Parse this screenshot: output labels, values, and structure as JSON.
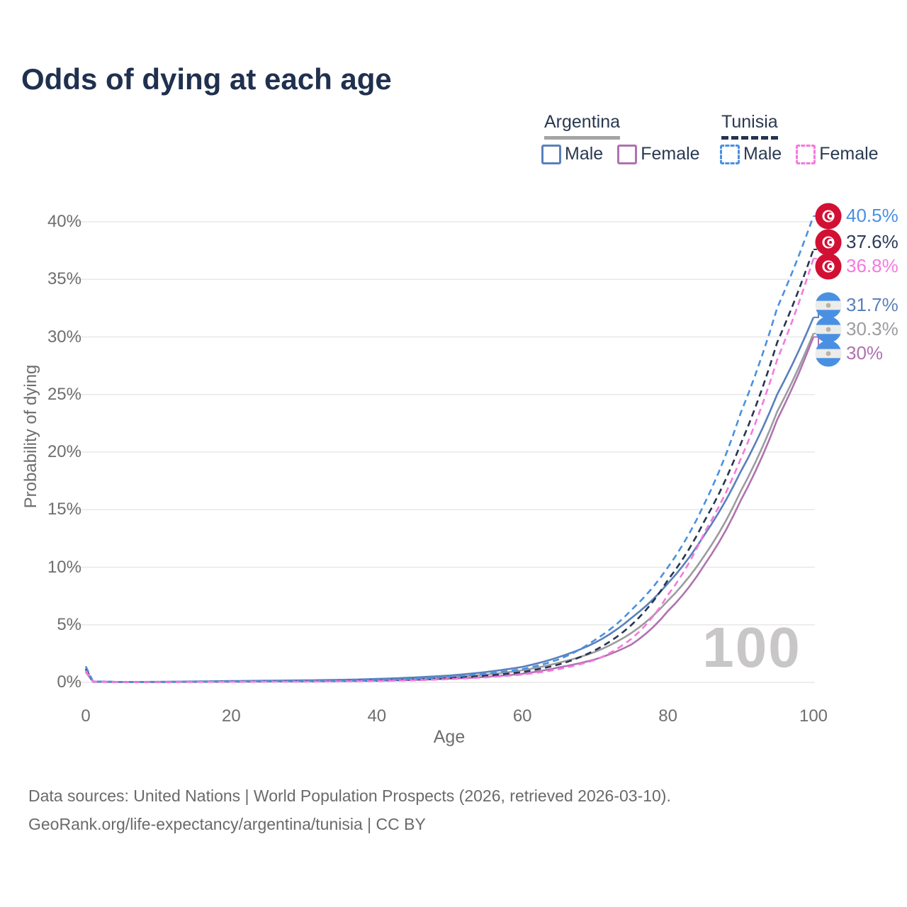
{
  "title": "Odds of dying at each age",
  "watermark": "100",
  "legend": {
    "groups": [
      {
        "label": "Argentina",
        "underline": "solid",
        "items": [
          {
            "label": "Male",
            "color": "#5a80bb",
            "dash": false
          },
          {
            "label": "Female",
            "color": "#af72b0",
            "dash": false
          }
        ]
      },
      {
        "label": "Tunisia",
        "underline": "dashed",
        "items": [
          {
            "label": "Male",
            "color": "#4a90e2",
            "dash": true
          },
          {
            "label": "Female",
            "color": "#f678de",
            "dash": true
          }
        ]
      }
    ]
  },
  "chart_data": {
    "type": "line",
    "title": "Odds of dying at each age",
    "xlabel": "Age",
    "ylabel": "Probability of dying",
    "x_ticks": [
      0,
      20,
      40,
      60,
      80,
      100
    ],
    "y_ticks": [
      0,
      5,
      10,
      15,
      20,
      25,
      30,
      35,
      40
    ],
    "y_tick_suffix": "%",
    "xlim": [
      0,
      100
    ],
    "ylim": [
      0,
      40.5
    ],
    "grid": "horizontal",
    "legend_position": "top-right",
    "x": [
      0,
      1,
      5,
      10,
      15,
      20,
      25,
      30,
      35,
      40,
      45,
      50,
      55,
      60,
      65,
      70,
      75,
      80,
      85,
      90,
      95,
      100
    ],
    "series": [
      {
        "name": "Argentina All",
        "color": "#9c9ca0",
        "dash": false,
        "values": [
          1.0,
          0.06,
          0.035,
          0.04,
          0.06,
          0.09,
          0.11,
          0.13,
          0.17,
          0.22,
          0.31,
          0.46,
          0.68,
          1.05,
          1.7,
          2.65,
          4.3,
          7.1,
          11.0,
          16.6,
          23.5,
          30.3
        ]
      },
      {
        "name": "Argentina Female",
        "color": "#af72b0",
        "dash": false,
        "values": [
          0.9,
          0.05,
          0.03,
          0.03,
          0.045,
          0.06,
          0.08,
          0.09,
          0.11,
          0.15,
          0.21,
          0.32,
          0.48,
          0.75,
          1.3,
          2.0,
          3.3,
          6.2,
          10.2,
          15.8,
          22.8,
          30.0
        ]
      },
      {
        "name": "Argentina Male",
        "color": "#5a80bb",
        "dash": false,
        "values": [
          1.1,
          0.07,
          0.04,
          0.05,
          0.08,
          0.12,
          0.15,
          0.18,
          0.22,
          0.3,
          0.42,
          0.6,
          0.9,
          1.35,
          2.2,
          3.45,
          5.6,
          8.6,
          12.8,
          18.3,
          25.0,
          31.7
        ]
      },
      {
        "name": "Tunisia All",
        "color": "#27364f",
        "dash": true,
        "values": [
          1.2,
          0.07,
          0.035,
          0.035,
          0.05,
          0.06,
          0.08,
          0.1,
          0.12,
          0.16,
          0.24,
          0.38,
          0.58,
          0.9,
          1.55,
          2.8,
          5.0,
          8.9,
          14.0,
          20.7,
          29.5,
          37.6
        ]
      },
      {
        "name": "Tunisia Male",
        "color": "#4a90e2",
        "dash": true,
        "values": [
          1.4,
          0.08,
          0.04,
          0.04,
          0.06,
          0.08,
          0.1,
          0.12,
          0.15,
          0.2,
          0.3,
          0.5,
          0.75,
          1.15,
          2.0,
          3.7,
          6.3,
          10.0,
          15.5,
          23.4,
          32.5,
          40.5
        ]
      },
      {
        "name": "Tunisia Female",
        "color": "#f678de",
        "dash": true,
        "values": [
          1.0,
          0.06,
          0.03,
          0.03,
          0.04,
          0.05,
          0.06,
          0.07,
          0.09,
          0.12,
          0.18,
          0.28,
          0.44,
          0.68,
          1.15,
          1.95,
          3.8,
          7.6,
          13.0,
          19.4,
          28.0,
          36.8
        ]
      }
    ],
    "end_labels": [
      {
        "text": "40.5%",
        "value": 40.5,
        "color": "#4a90e2",
        "flag": "tunisia",
        "series": "Tunisia Male",
        "dash": true
      },
      {
        "text": "37.6%",
        "value": 37.6,
        "color": "#2b3a55",
        "flag": "tunisia",
        "series": "Tunisia All",
        "dash": true
      },
      {
        "text": "36.8%",
        "value": 36.8,
        "color": "#f678de",
        "flag": "tunisia",
        "series": "Tunisia Female",
        "dash": true
      },
      {
        "text": "31.7%",
        "value": 31.7,
        "color": "#5a80bb",
        "flag": "argentina",
        "series": "Argentina Male",
        "dash": false
      },
      {
        "text": "30.3%",
        "value": 30.3,
        "color": "#9c9ca0",
        "flag": "argentina",
        "series": "Argentina All",
        "dash": false
      },
      {
        "text": "30%",
        "value": 30.0,
        "color": "#af72b0",
        "flag": "argentina",
        "series": "Argentina Female",
        "dash": false
      }
    ]
  },
  "footer": {
    "line1": "Data sources: United Nations | World Population Prospects (2026, retrieved 2026-03-10).",
    "line2": "GeoRank.org/life-expectancy/argentina/tunisia | CC BY"
  }
}
